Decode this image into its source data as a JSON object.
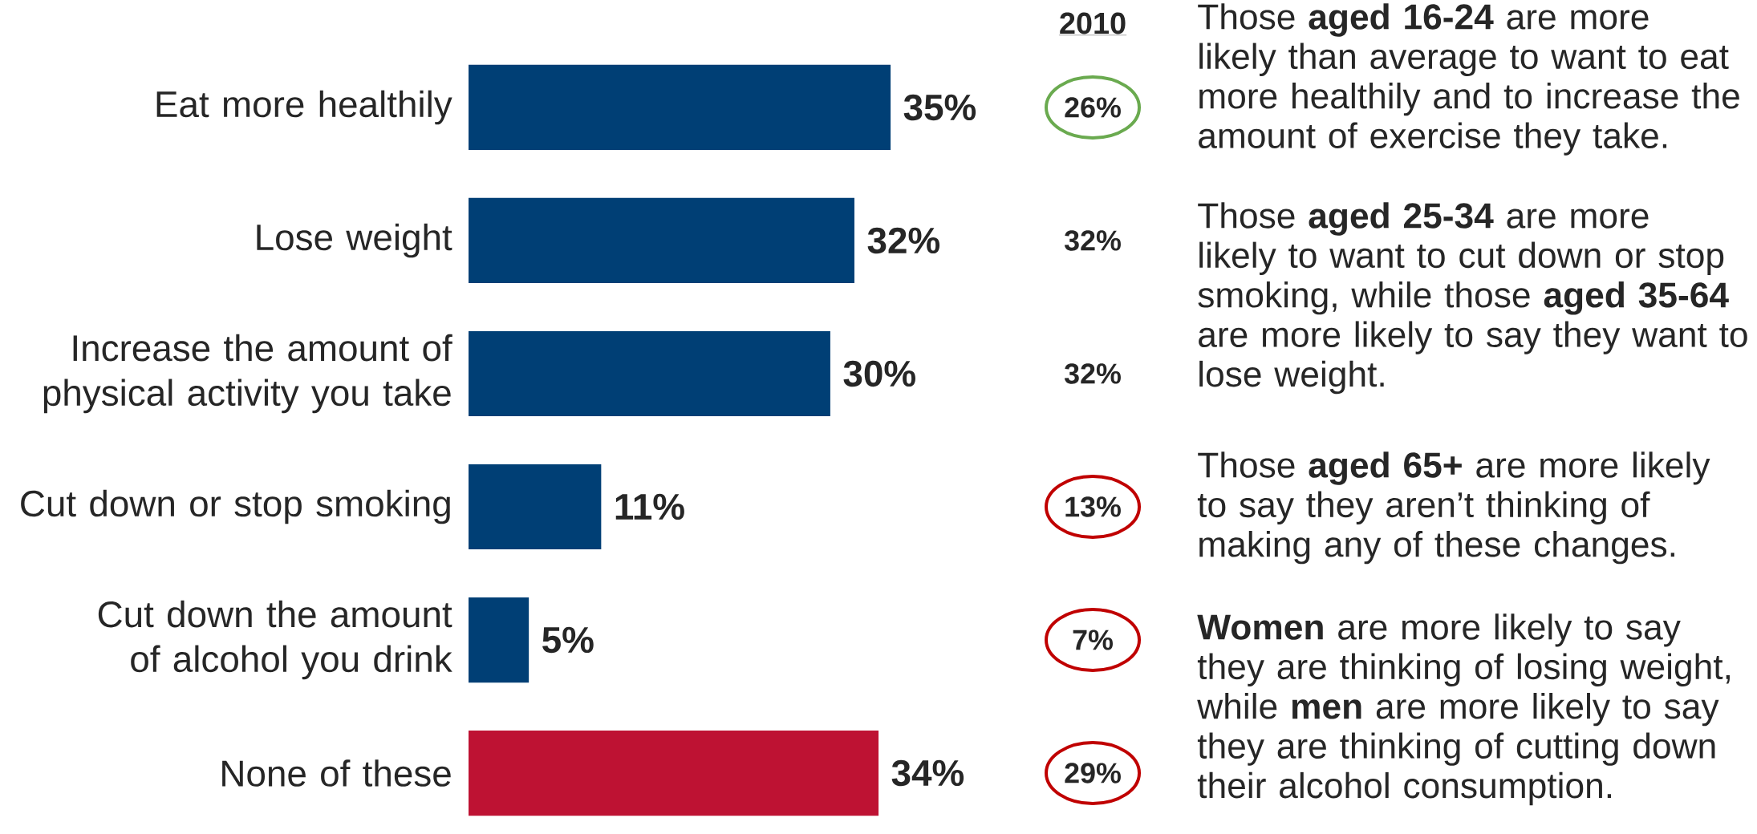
{
  "chart_data": {
    "type": "bar",
    "orientation": "horizontal",
    "categories": [
      "Eat more healthily",
      "Lose weight",
      "Increase the amount of physical activity you take",
      "Cut down or stop smoking",
      "Cut down the amount of alcohol you drink",
      "None of these"
    ],
    "values": [
      35,
      32,
      30,
      11,
      5,
      34
    ],
    "value_labels": [
      "35%",
      "32%",
      "30%",
      "11%",
      "5%",
      "34%"
    ],
    "colors": [
      "#003f75",
      "#003f75",
      "#003f75",
      "#003f75",
      "#003f75",
      "#be1233"
    ],
    "annotations": [
      "2010",
      "26%",
      "32%",
      "32%",
      "13%",
      "7%",
      "29%",
      "Those **aged 16-24** are more likely than average to want to eat more healthily and to increase the amount of exercise they take.",
      "Those **aged 25-34** are more likely to want to cut down or stop smoking, while those **aged 35-64** are more likely to say they want to lose weight.",
      "Those **aged 65+** are more likely to say they aren’t thinking of making any of these changes.",
      "**Women** are more likely to say they are thinking of losing weight, while **men** are more likely to say they are thinking of cutting down their alcohol consumption."
    ]
  }
}
